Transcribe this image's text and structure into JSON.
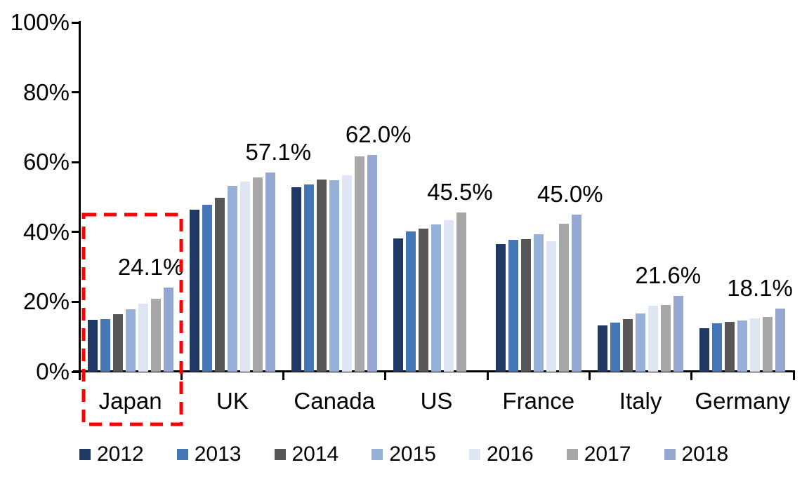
{
  "chart_data": {
    "type": "bar",
    "title": "",
    "xlabel": "",
    "ylabel": "",
    "categories": [
      "Japan",
      "UK",
      "Canada",
      "US",
      "France",
      "Italy",
      "Germany"
    ],
    "series": [
      {
        "name": "2012",
        "color": "#1F3864",
        "values": [
          14.8,
          46.3,
          52.9,
          38.2,
          36.6,
          13.3,
          12.5
        ]
      },
      {
        "name": "2013",
        "color": "#4577B6",
        "values": [
          15.0,
          47.8,
          53.6,
          40.2,
          37.8,
          14.0,
          13.9
        ]
      },
      {
        "name": "2014",
        "color": "#575757",
        "values": [
          16.4,
          49.8,
          55.0,
          41.0,
          37.9,
          15.0,
          14.2
        ]
      },
      {
        "name": "2015",
        "color": "#95B1D7",
        "values": [
          17.8,
          53.2,
          54.8,
          42.1,
          39.4,
          16.6,
          14.6
        ]
      },
      {
        "name": "2016",
        "color": "#DDE6F2",
        "values": [
          19.5,
          54.4,
          56.2,
          43.4,
          37.3,
          18.8,
          15.2
        ]
      },
      {
        "name": "2017",
        "color": "#A7A7A7",
        "values": [
          20.9,
          55.7,
          61.7,
          45.5,
          42.4,
          19.0,
          15.7
        ]
      },
      {
        "name": "2018",
        "color": "#95A8D2",
        "values": [
          24.1,
          57.1,
          62.0,
          null,
          45.0,
          21.6,
          18.1
        ]
      }
    ],
    "data_labels": [
      "24.1%",
      "57.1%",
      "62.0%",
      "45.5%",
      "45.0%",
      "21.6%",
      "18.1%"
    ],
    "ylim": [
      0,
      100
    ],
    "yticks": [
      "0%",
      "20%",
      "40%",
      "60%",
      "80%",
      "100%"
    ],
    "grid": false,
    "legend_position": "bottom",
    "highlight": {
      "category": "Japan",
      "style": "red-dashed-box",
      "color": "#FF0000"
    }
  }
}
